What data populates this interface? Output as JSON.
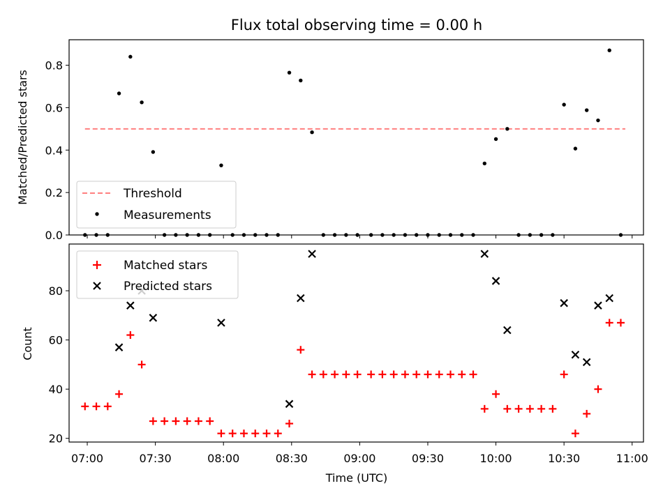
{
  "chart_data": [
    {
      "type": "scatter",
      "title": "Flux total observing time = 0.00 h",
      "xlabel": "",
      "ylabel": "Matched/Predicted stars",
      "ylim": [
        0,
        0.92
      ],
      "yticks": [
        0.0,
        0.2,
        0.4,
        0.6,
        0.8
      ],
      "ytick_labels": [
        "0.0",
        "0.2",
        "0.4",
        "0.6",
        "0.8"
      ],
      "legend": {
        "placement": "lower-left",
        "entries": [
          "Threshold",
          "Measurements"
        ]
      },
      "threshold": {
        "name": "Threshold",
        "value": 0.5,
        "x_start": "06:59",
        "x_end": "10:57",
        "color": "#ff7f7f"
      },
      "series": [
        {
          "name": "Measurements",
          "color": "#000000",
          "x": [
            "06:59",
            "07:04",
            "07:09",
            "07:14",
            "07:19",
            "07:24",
            "07:29",
            "07:34",
            "07:39",
            "07:44",
            "07:49",
            "07:54",
            "07:59",
            "08:04",
            "08:09",
            "08:14",
            "08:19",
            "08:24",
            "08:29",
            "08:34",
            "08:39",
            "08:44",
            "08:49",
            "08:54",
            "08:59",
            "09:05",
            "09:10",
            "09:15",
            "09:20",
            "09:25",
            "09:30",
            "09:35",
            "09:40",
            "09:45",
            "09:50",
            "09:55",
            "10:00",
            "10:05",
            "10:10",
            "10:15",
            "10:20",
            "10:25",
            "10:30",
            "10:35",
            "10:40",
            "10:45",
            "10:50",
            "10:55"
          ],
          "values": [
            0,
            0,
            0,
            0.667,
            0.84,
            0.625,
            0.391,
            0,
            0,
            0,
            0,
            0,
            0.328,
            0,
            0,
            0,
            0,
            0,
            0.765,
            0.728,
            0.484,
            0,
            0,
            0,
            0,
            0,
            0,
            0,
            0,
            0,
            0,
            0,
            0,
            0,
            0,
            0.337,
            0.452,
            0.5,
            0,
            0,
            0,
            0,
            0.614,
            0.407,
            0.588,
            0.54,
            0.87,
            0
          ]
        }
      ]
    },
    {
      "type": "scatter",
      "title": "",
      "xlabel": "Time (UTC)",
      "ylabel": "Count",
      "ylim": [
        18.5,
        99
      ],
      "yticks": [
        20,
        40,
        60,
        80
      ],
      "ytick_labels": [
        "20",
        "40",
        "60",
        "80"
      ],
      "xlim": [
        "06:52",
        "11:05"
      ],
      "xticks": [
        "07:00",
        "07:30",
        "08:00",
        "08:30",
        "09:00",
        "09:30",
        "10:00",
        "10:30",
        "11:00"
      ],
      "legend": {
        "placement": "upper-left",
        "entries": [
          "Matched stars",
          "Predicted stars"
        ]
      },
      "series": [
        {
          "name": "Matched stars",
          "color": "#ff0000",
          "marker": "plus",
          "x": [
            "06:59",
            "07:04",
            "07:09",
            "07:14",
            "07:19",
            "07:24",
            "07:29",
            "07:34",
            "07:39",
            "07:44",
            "07:49",
            "07:54",
            "07:59",
            "08:04",
            "08:09",
            "08:14",
            "08:19",
            "08:24",
            "08:29",
            "08:34",
            "08:39",
            "08:44",
            "08:49",
            "08:54",
            "08:59",
            "09:05",
            "09:10",
            "09:15",
            "09:20",
            "09:25",
            "09:30",
            "09:35",
            "09:40",
            "09:45",
            "09:50",
            "09:55",
            "10:00",
            "10:05",
            "10:10",
            "10:15",
            "10:20",
            "10:25",
            "10:30",
            "10:35",
            "10:40",
            "10:45",
            "10:50",
            "10:55"
          ],
          "values": [
            33,
            33,
            33,
            38,
            62,
            50,
            27,
            27,
            27,
            27,
            27,
            27,
            22,
            22,
            22,
            22,
            22,
            22,
            26,
            56,
            46,
            46,
            46,
            46,
            46,
            46,
            46,
            46,
            46,
            46,
            46,
            46,
            46,
            46,
            46,
            32,
            38,
            32,
            32,
            32,
            32,
            32,
            46,
            22,
            30,
            40,
            67,
            67
          ]
        },
        {
          "name": "Predicted stars",
          "color": "#000000",
          "marker": "x",
          "x": [
            "07:14",
            "07:19",
            "07:24",
            "07:29",
            "07:59",
            "08:29",
            "08:34",
            "08:39",
            "09:55",
            "10:00",
            "10:05",
            "10:30",
            "10:35",
            "10:40",
            "10:45",
            "10:50"
          ],
          "values": [
            57,
            74,
            80,
            69,
            67,
            34,
            77,
            95,
            95,
            84,
            64,
            75,
            54,
            51,
            74,
            77
          ]
        }
      ]
    }
  ]
}
